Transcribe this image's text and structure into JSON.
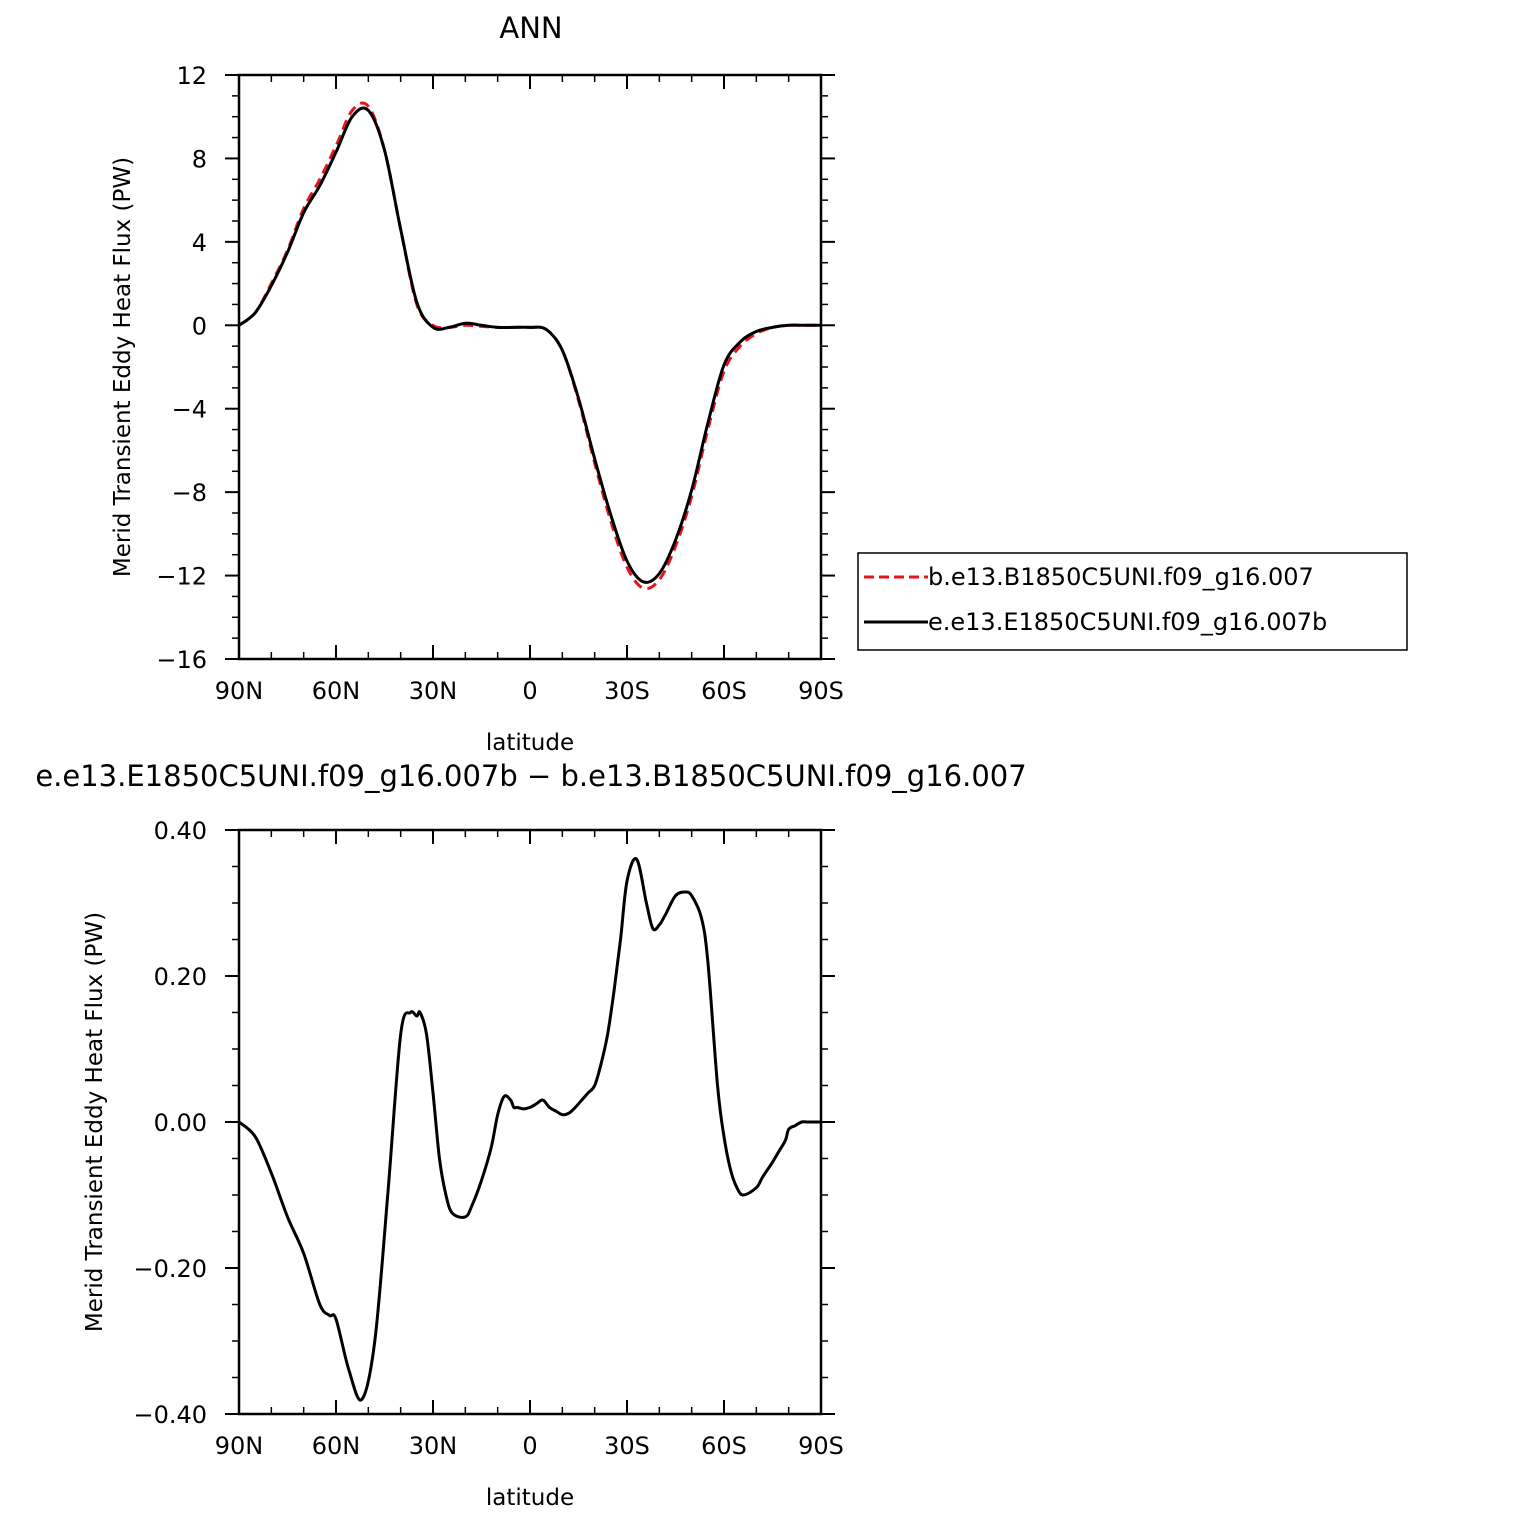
{
  "chart_data": [
    {
      "type": "line",
      "title": "ANN",
      "xlabel": "latitude",
      "ylabel": "Merid Transient Eddy Heat Flux (PW)",
      "x_ticks": [
        90,
        60,
        30,
        0,
        -30,
        -60,
        -90
      ],
      "x_tick_labels": [
        "90N",
        "60N",
        "30N",
        "0",
        "30S",
        "60S",
        "90S"
      ],
      "xlim": [
        90,
        -90
      ],
      "y_ticks": [
        12,
        8,
        4,
        0,
        -4,
        -8,
        -12,
        -16
      ],
      "y_tick_labels": [
        "12",
        "8",
        "4",
        "0",
        "−4",
        "−8",
        "−12",
        "−16"
      ],
      "ylim": [
        -16,
        12
      ],
      "grid": false,
      "legend_placement": "right",
      "x": [
        90,
        85,
        80,
        75,
        70,
        65,
        60,
        55,
        50,
        45,
        40,
        35,
        30,
        25,
        20,
        15,
        10,
        5,
        0,
        -5,
        -10,
        -15,
        -20,
        -25,
        -30,
        -35,
        -40,
        -45,
        -50,
        -55,
        -60,
        -65,
        -70,
        -75,
        -80,
        -85,
        -90
      ],
      "series": [
        {
          "name": "b.e13.B1850C5UNI.f09_g16.007",
          "color": "#e8141c",
          "dash": "dashed",
          "values": [
            0,
            0.6,
            2.0,
            3.6,
            5.6,
            7.0,
            8.6,
            10.3,
            10.5,
            8.4,
            4.6,
            1.0,
            0.0,
            -0.1,
            0.0,
            -0.05,
            -0.1,
            -0.1,
            -0.1,
            -0.2,
            -1.2,
            -3.6,
            -6.6,
            -9.4,
            -11.6,
            -12.6,
            -12.2,
            -10.6,
            -8.2,
            -5.0,
            -2.2,
            -1.0,
            -0.4,
            -0.1,
            0.0,
            0.0,
            0.0
          ]
        },
        {
          "name": "e.e13.E1850C5UNI.f09_g16.007b",
          "color": "#000000",
          "dash": "solid",
          "values": [
            0,
            0.6,
            1.9,
            3.5,
            5.4,
            6.7,
            8.3,
            10.0,
            10.3,
            8.4,
            4.6,
            1.1,
            -0.1,
            -0.1,
            0.1,
            0.0,
            -0.1,
            -0.1,
            -0.1,
            -0.2,
            -1.2,
            -3.5,
            -6.4,
            -9.1,
            -11.3,
            -12.3,
            -11.9,
            -10.3,
            -7.9,
            -4.7,
            -1.9,
            -0.8,
            -0.3,
            -0.1,
            0.0,
            0.0,
            0.0
          ]
        }
      ]
    },
    {
      "type": "line",
      "title": "e.e13.E1850C5UNI.f09_g16.007b − b.e13.B1850C5UNI.f09_g16.007",
      "xlabel": "latitude",
      "ylabel": "Merid Transient Eddy Heat Flux (PW)",
      "x_ticks": [
        90,
        60,
        30,
        0,
        -30,
        -60,
        -90
      ],
      "x_tick_labels": [
        "90N",
        "60N",
        "30N",
        "0",
        "30S",
        "60S",
        "90S"
      ],
      "xlim": [
        90,
        -90
      ],
      "y_ticks": [
        0.4,
        0.2,
        0.0,
        -0.2,
        -0.4
      ],
      "y_tick_labels": [
        "0.40",
        "0.20",
        "0.00",
        "−0.20",
        "−0.40"
      ],
      "ylim": [
        -0.4,
        0.4
      ],
      "grid": false,
      "x": [
        90,
        85,
        80,
        75,
        70,
        65,
        62,
        60,
        56,
        52,
        48,
        44,
        40,
        37,
        35,
        34,
        32,
        30,
        28,
        26,
        24,
        20,
        18,
        15,
        12,
        10,
        8,
        6,
        5,
        4,
        2,
        0,
        -2,
        -4,
        -6,
        -8,
        -10,
        -12,
        -14,
        -16,
        -18,
        -20,
        -22,
        -24,
        -26,
        -28,
        -30,
        -33,
        -36,
        -38,
        -40,
        -42,
        -45,
        -48,
        -50,
        -53,
        -55,
        -58,
        -60,
        -62,
        -64,
        -66,
        -70,
        -72,
        -75,
        -77,
        -79,
        -80,
        -82,
        -84,
        -86,
        -88,
        -90
      ],
      "series": [
        {
          "name": "",
          "color": "#000000",
          "dash": "solid",
          "values": [
            0.0,
            -0.02,
            -0.07,
            -0.13,
            -0.18,
            -0.25,
            -0.265,
            -0.27,
            -0.34,
            -0.38,
            -0.3,
            -0.1,
            0.12,
            0.15,
            0.145,
            0.15,
            0.12,
            0.04,
            -0.05,
            -0.1,
            -0.125,
            -0.13,
            -0.115,
            -0.08,
            -0.035,
            0.01,
            0.035,
            0.03,
            0.02,
            0.02,
            0.018,
            0.02,
            0.025,
            0.03,
            0.02,
            0.015,
            0.01,
            0.012,
            0.02,
            0.03,
            0.04,
            0.05,
            0.08,
            0.12,
            0.18,
            0.25,
            0.33,
            0.36,
            0.3,
            0.265,
            0.27,
            0.285,
            0.31,
            0.315,
            0.31,
            0.28,
            0.22,
            0.05,
            -0.02,
            -0.065,
            -0.09,
            -0.1,
            -0.09,
            -0.075,
            -0.055,
            -0.04,
            -0.025,
            -0.01,
            -0.005,
            0.0,
            0.0,
            0.0,
            0.0
          ]
        }
      ]
    }
  ]
}
